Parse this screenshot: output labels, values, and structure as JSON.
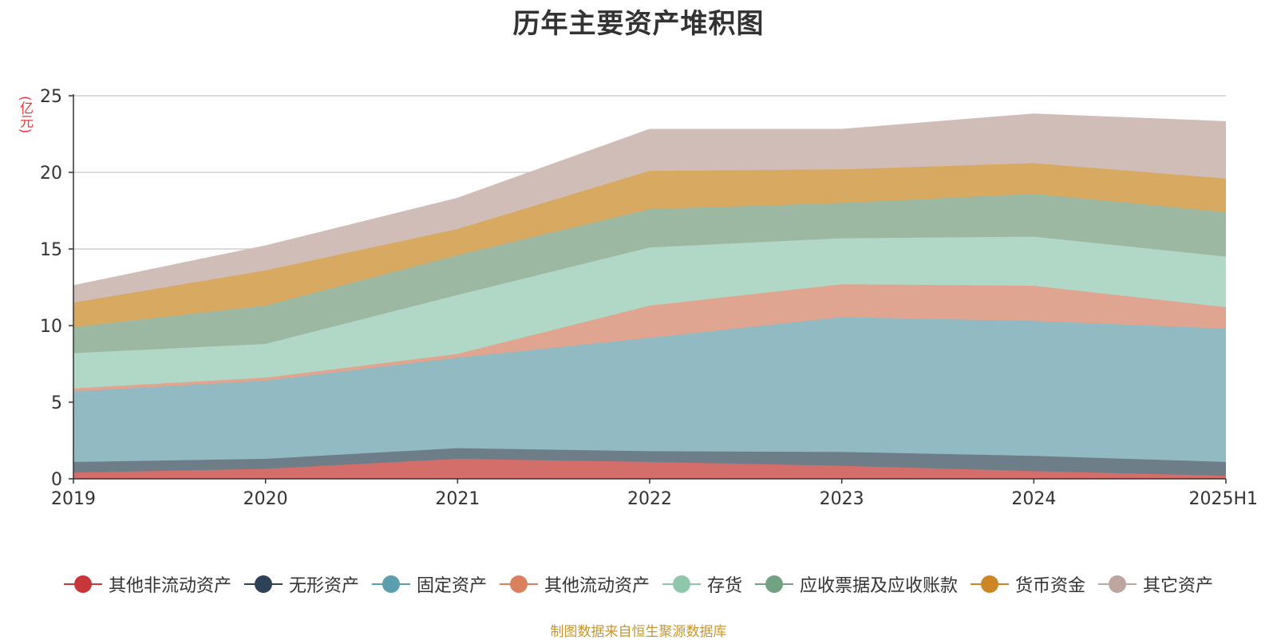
{
  "chart_data": {
    "type": "area",
    "stacked": true,
    "title": "历年主要资产堆积图",
    "ylabel": "亿元",
    "ylim": [
      0,
      25
    ],
    "yticks": [
      0,
      5,
      10,
      15,
      20,
      25
    ],
    "grid": true,
    "legend_position": "bottom",
    "categories": [
      "2019",
      "2020",
      "2021",
      "2022",
      "2023",
      "2024",
      "2025H1"
    ],
    "series": [
      {
        "name": "其他非流动资产",
        "color": "#c8363a",
        "fill": "#d46e6b",
        "values": [
          0.4,
          0.65,
          1.3,
          1.1,
          0.85,
          0.5,
          0.2
        ]
      },
      {
        "name": "无形资产",
        "color": "#2e4256",
        "fill": "#6e7e88",
        "values": [
          0.7,
          0.65,
          0.7,
          0.7,
          0.9,
          1.0,
          0.9
        ]
      },
      {
        "name": "固定资产",
        "color": "#5b9fae",
        "fill": "#91bac2",
        "values": [
          4.6,
          5.1,
          5.9,
          7.4,
          8.8,
          8.8,
          8.7
        ]
      },
      {
        "name": "其他流动资产",
        "color": "#d9805f",
        "fill": "#e0a591",
        "values": [
          0.2,
          0.2,
          0.25,
          2.1,
          2.15,
          2.3,
          1.4
        ]
      },
      {
        "name": "存货",
        "color": "#8fc7ad",
        "fill": "#b1d8c6",
        "values": [
          2.3,
          2.2,
          3.85,
          3.8,
          3.0,
          3.2,
          3.3
        ]
      },
      {
        "name": "应收票据及应收账款",
        "color": "#73a283",
        "fill": "#9db8a2",
        "values": [
          1.7,
          2.5,
          2.6,
          2.5,
          2.3,
          2.8,
          2.9
        ]
      },
      {
        "name": "货币资金",
        "color": "#cc8724",
        "fill": "#d8a960",
        "values": [
          1.6,
          2.3,
          1.7,
          2.5,
          2.2,
          2.0,
          2.2
        ]
      },
      {
        "name": "其它资产",
        "color": "#bda69f",
        "fill": "#d1bdb7",
        "values": [
          1.1,
          1.6,
          2.0,
          2.7,
          2.6,
          3.2,
          3.7
        ]
      }
    ],
    "source_note": "制图数据来自恒生聚源数据库"
  }
}
